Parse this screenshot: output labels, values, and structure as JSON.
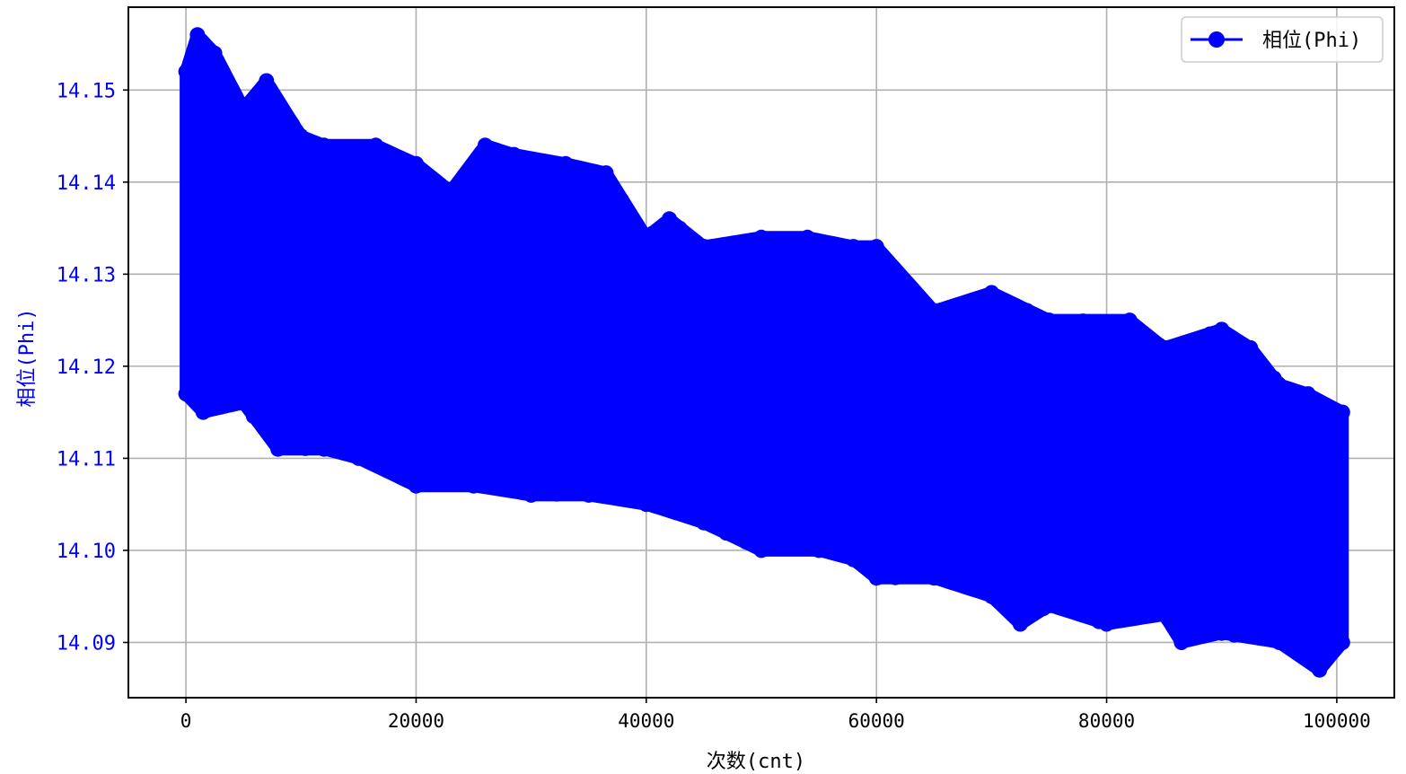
{
  "chart_data": {
    "type": "line",
    "title": "",
    "xlabel": "次数(cnt)",
    "ylabel": "相位(Phi)",
    "xlim": [
      -5000,
      105000
    ],
    "ylim": [
      14.084,
      14.159
    ],
    "xticks": [
      0,
      20000,
      40000,
      60000,
      80000,
      100000
    ],
    "xtick_labels": [
      "0",
      "20000",
      "40000",
      "60000",
      "80000",
      "100000"
    ],
    "yticks": [
      14.09,
      14.1,
      14.11,
      14.12,
      14.13,
      14.14,
      14.15
    ],
    "ytick_labels": [
      "14.09",
      "14.10",
      "14.11",
      "14.12",
      "14.13",
      "14.14",
      "14.15"
    ],
    "grid": true,
    "legend_position": "top-right",
    "series": [
      {
        "name": "相位(Phi)",
        "color": "#0000ff",
        "marker": "circle",
        "x_range": [
          0,
          100500
        ],
        "point_count": 100500,
        "trend_start": 14.133,
        "trend_end": 14.104,
        "envelope_top": [
          [
            0,
            14.152
          ],
          [
            1000,
            14.156
          ],
          [
            2500,
            14.154
          ],
          [
            5000,
            14.148
          ],
          [
            7000,
            14.151
          ],
          [
            10000,
            14.145
          ],
          [
            12000,
            14.144
          ],
          [
            16500,
            14.144
          ],
          [
            20000,
            14.142
          ],
          [
            23000,
            14.139
          ],
          [
            26000,
            14.144
          ],
          [
            28500,
            14.143
          ],
          [
            33000,
            14.142
          ],
          [
            36500,
            14.141
          ],
          [
            40000,
            14.134
          ],
          [
            42000,
            14.136
          ],
          [
            45000,
            14.133
          ],
          [
            50000,
            14.134
          ],
          [
            54000,
            14.134
          ],
          [
            58000,
            14.133
          ],
          [
            60000,
            14.133
          ],
          [
            65000,
            14.126
          ],
          [
            70000,
            14.128
          ],
          [
            75000,
            14.125
          ],
          [
            82000,
            14.125
          ],
          [
            85000,
            14.122
          ],
          [
            90000,
            14.124
          ],
          [
            92500,
            14.122
          ],
          [
            95000,
            14.118
          ],
          [
            97500,
            14.117
          ],
          [
            100500,
            14.115
          ]
        ],
        "envelope_bottom": [
          [
            0,
            14.117
          ],
          [
            1500,
            14.115
          ],
          [
            5000,
            14.116
          ],
          [
            8000,
            14.111
          ],
          [
            12000,
            14.111
          ],
          [
            15000,
            14.11
          ],
          [
            20000,
            14.107
          ],
          [
            25000,
            14.107
          ],
          [
            30000,
            14.106
          ],
          [
            35000,
            14.106
          ],
          [
            40000,
            14.105
          ],
          [
            45000,
            14.103
          ],
          [
            50000,
            14.1
          ],
          [
            55000,
            14.1
          ],
          [
            58000,
            14.099
          ],
          [
            60000,
            14.097
          ],
          [
            65000,
            14.097
          ],
          [
            70000,
            14.095
          ],
          [
            72500,
            14.092
          ],
          [
            75000,
            14.094
          ],
          [
            80000,
            14.092
          ],
          [
            85000,
            14.093
          ],
          [
            86500,
            14.09
          ],
          [
            90000,
            14.091
          ],
          [
            95000,
            14.09
          ],
          [
            98500,
            14.087
          ],
          [
            100500,
            14.09
          ]
        ]
      }
    ]
  }
}
